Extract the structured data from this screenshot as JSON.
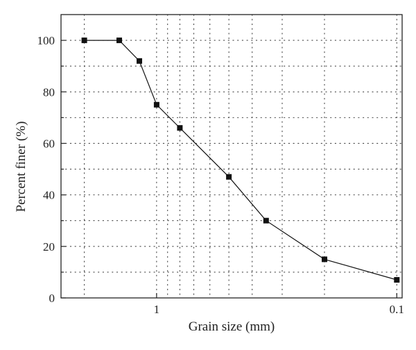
{
  "chart_data": {
    "type": "scatter",
    "title": "",
    "xlabel": "Grain size (mm)",
    "ylabel": "Percent finer (%)",
    "x_scale": "log",
    "x_reversed": true,
    "xlim": [
      2.5,
      0.095
    ],
    "ylim": [
      0,
      110
    ],
    "grid": true,
    "grid_style": "dotted",
    "x_ticks": [
      1,
      0.1
    ],
    "x_tick_labels": [
      "1",
      "0.1"
    ],
    "y_ticks": [
      0,
      20,
      40,
      60,
      80,
      100
    ],
    "y_tick_labels": [
      "0",
      "20",
      "40",
      "60",
      "80",
      "100"
    ],
    "marker": "square",
    "connected": true,
    "series": [
      {
        "x": [
          2,
          1.43,
          1.18,
          1,
          0.8,
          0.5,
          0.35,
          0.2,
          0.1
        ],
        "y": [
          100,
          100,
          92,
          75,
          66,
          47,
          30,
          15,
          7
        ]
      }
    ],
    "colors": {
      "series": "#111111",
      "axis": "#222222",
      "grid": "#444444"
    }
  }
}
